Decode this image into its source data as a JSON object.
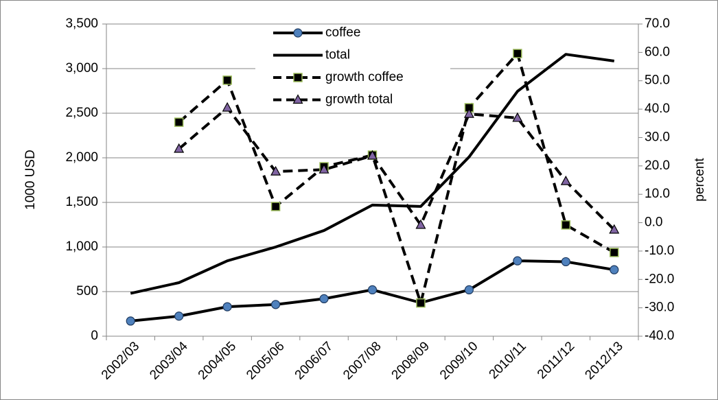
{
  "chart_data": {
    "type": "line",
    "categories": [
      "2002/03",
      "2003/04",
      "2004/05",
      "2005/06",
      "2006/07",
      "2007/08",
      "2008/09",
      "2009/10",
      "2010/11",
      "2011/12",
      "2012/13"
    ],
    "y_label": "1000 USD",
    "y2_label": "percent",
    "ylim": [
      0,
      3500
    ],
    "yticks": [
      0,
      500,
      {
        "value": 1000,
        "label": "1,000"
      },
      {
        "value": 1500,
        "label": "1,500"
      },
      {
        "value": 2000,
        "label": "2,000"
      },
      {
        "value": 2500,
        "label": "2,500"
      },
      {
        "value": 3000,
        "label": "3,000"
      },
      {
        "value": 3500,
        "label": "3,500"
      }
    ],
    "y2lim": [
      -40,
      70
    ],
    "y2ticks": [
      {
        "value": -40,
        "label": "-40.0"
      },
      {
        "value": -30,
        "label": "-30.0"
      },
      {
        "value": -20,
        "label": "-20.0"
      },
      {
        "value": -10,
        "label": "-10.0"
      },
      {
        "value": 0,
        "label": "0.0"
      },
      {
        "value": 10,
        "label": "10.0"
      },
      {
        "value": 20,
        "label": "20.0"
      },
      {
        "value": 30,
        "label": "30.0"
      },
      {
        "value": 40,
        "label": "40.0"
      },
      {
        "value": 50,
        "label": "50.0"
      },
      {
        "value": 60,
        "label": "60.0"
      },
      {
        "value": 70,
        "label": "70.0"
      }
    ],
    "grid": true,
    "series": [
      {
        "name": "coffee",
        "color": "#000000",
        "marker": "circle",
        "marker_color": "#4f81bd",
        "line_style": "solid",
        "axis": "y",
        "values": [
          170,
          225,
          330,
          355,
          420,
          520,
          375,
          520,
          845,
          835,
          745
        ]
      },
      {
        "name": "total",
        "color": "#000000",
        "marker": "none",
        "line_style": "solid",
        "axis": "y",
        "values": [
          480,
          600,
          845,
          1000,
          1185,
          1470,
          1455,
          2010,
          2745,
          3160,
          3085
        ]
      },
      {
        "name": "growth coffee",
        "color": "#000000",
        "marker": "square",
        "marker_color": "#9bbb59",
        "line_style": "dashed",
        "axis": "y2",
        "values": [
          null,
          35.4,
          50.2,
          5.7,
          19.7,
          23.8,
          -28.3,
          40.5,
          59.6,
          -0.8,
          -10.5
        ]
      },
      {
        "name": "growth total",
        "color": "#000000",
        "marker": "triangle",
        "marker_color": "#8064a2",
        "line_style": "dashed",
        "axis": "y2",
        "values": [
          null,
          26.0,
          40.5,
          18.0,
          18.7,
          23.6,
          -0.8,
          38.3,
          36.9,
          14.6,
          -2.5
        ]
      }
    ]
  }
}
